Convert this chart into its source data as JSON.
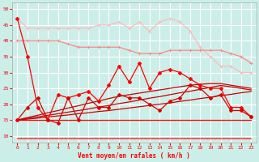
{
  "xlabel": "Vent moyen/en rafales ( km/h )",
  "bg_color": "#cceee8",
  "grid_color": "#ffffff",
  "xlim": [
    -0.5,
    23.5
  ],
  "ylim": [
    8,
    52
  ],
  "yticks": [
    10,
    15,
    20,
    25,
    30,
    35,
    40,
    45,
    50
  ],
  "xticks": [
    0,
    1,
    2,
    3,
    4,
    5,
    6,
    7,
    8,
    9,
    10,
    11,
    12,
    13,
    14,
    15,
    16,
    17,
    18,
    19,
    20,
    21,
    22,
    23
  ],
  "x": [
    0,
    1,
    2,
    3,
    4,
    5,
    6,
    7,
    8,
    9,
    10,
    11,
    12,
    13,
    14,
    15,
    16,
    17,
    18,
    19,
    20,
    21,
    22,
    23
  ],
  "line_rafales_max": [
    47,
    44,
    44,
    44,
    44,
    44,
    44,
    44,
    45,
    45,
    46,
    44,
    46,
    43,
    46,
    47,
    46,
    43,
    38,
    35,
    32,
    32,
    30,
    30
  ],
  "line_moyen_max": [
    40,
    40,
    40,
    40,
    40,
    39,
    38,
    38,
    38,
    38,
    38,
    37,
    36,
    36,
    36,
    37,
    37,
    37,
    37,
    37,
    37,
    36,
    35,
    33
  ],
  "line_rafales": [
    47,
    35,
    19,
    15,
    23,
    22,
    23,
    24,
    21,
    26,
    32,
    27,
    33,
    25,
    30,
    31,
    30,
    28,
    26,
    25,
    25,
    19,
    19,
    16
  ],
  "line_moyen": [
    15,
    19,
    22,
    15,
    14,
    22,
    15,
    22,
    19,
    19,
    23,
    22,
    22,
    20,
    18,
    21,
    22,
    26,
    25,
    22,
    23,
    18,
    18,
    16
  ],
  "line_const_low": [
    15,
    15,
    15,
    15,
    15,
    15,
    15,
    15,
    15,
    15,
    15,
    15,
    15,
    15,
    15,
    15,
    15,
    15,
    15,
    15,
    15,
    15,
    15,
    15
  ],
  "line_trend1": [
    15,
    15.3,
    15.6,
    16.0,
    16.3,
    16.6,
    17.0,
    17.3,
    17.7,
    18.0,
    18.4,
    18.8,
    19.2,
    19.6,
    20.0,
    20.4,
    20.9,
    21.3,
    21.8,
    22.2,
    22.7,
    23.1,
    23.6,
    24.0
  ],
  "line_trend2": [
    15,
    15.5,
    16.0,
    16.5,
    17.0,
    17.5,
    18.0,
    18.5,
    19.1,
    19.6,
    20.2,
    20.7,
    21.3,
    21.9,
    22.4,
    23.0,
    23.6,
    24.1,
    24.7,
    25.3,
    25.9,
    25.5,
    25.0,
    24.5
  ],
  "line_trend3": [
    15,
    15.8,
    16.5,
    17.3,
    18.0,
    18.8,
    19.5,
    20.3,
    21.0,
    21.8,
    22.5,
    23.0,
    23.5,
    24.0,
    24.5,
    25.0,
    25.5,
    26.0,
    26.3,
    26.5,
    26.5,
    26.0,
    25.5,
    25.0
  ],
  "color_rafales_max": "#ffbbbb",
  "color_moyen_max": "#ff8888",
  "color_rafales": "#ff0000",
  "color_moyen": "#dd0000",
  "color_const_low": "#ff0000",
  "color_trend": "#cc0000",
  "zigzag_color": "#ff0000",
  "xlabel_color": "#ff0000",
  "tick_color": "#ff0000"
}
